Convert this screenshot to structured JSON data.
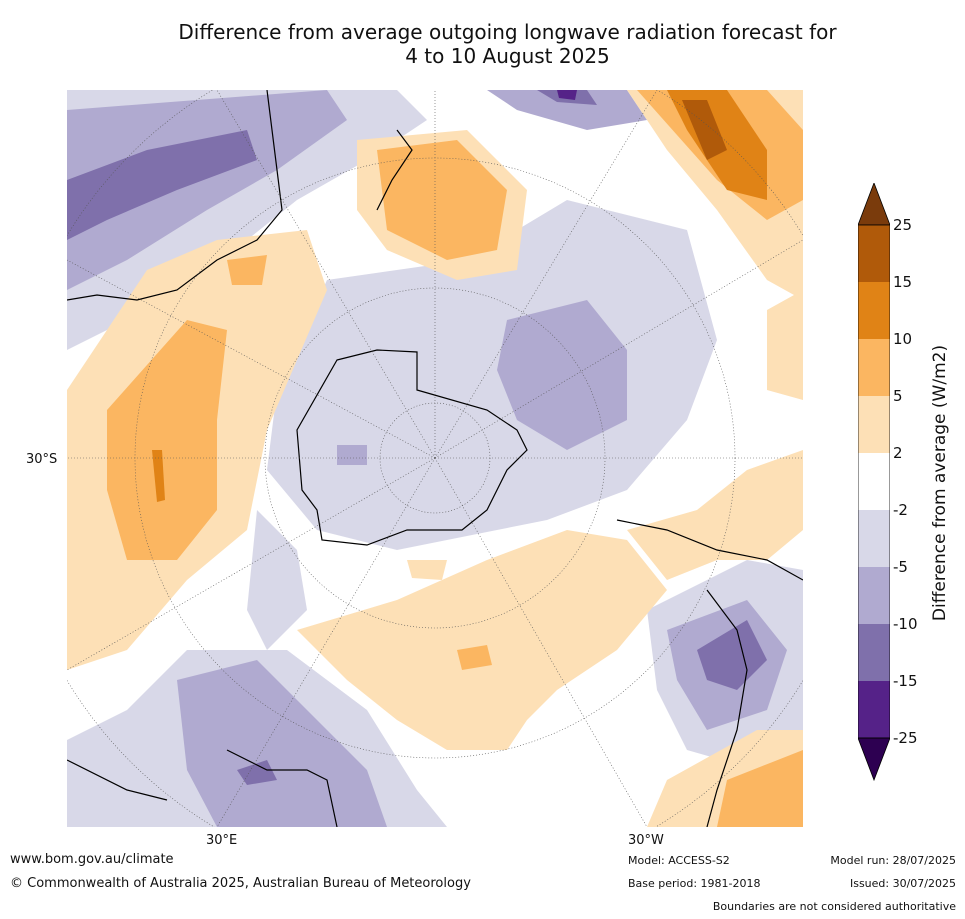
{
  "title": {
    "line1": "Difference from average outgoing longwave radiation forecast for",
    "line2": "4 to 10 August 2025"
  },
  "map": {
    "latitude_label": "30°S",
    "longitude_labels": [
      "30°E",
      "30°W"
    ]
  },
  "legend": {
    "label": "Difference from average (W/m2)",
    "ticks": [
      "25",
      "15",
      "10",
      "5",
      "2",
      "-2",
      "-5",
      "-10",
      "-15",
      "-25"
    ],
    "colors": {
      "gt25": "#7a3b0c",
      "15_25": "#b05a0a",
      "10_15": "#e08316",
      "5_10": "#fbb661",
      "2_5": "#fde0b6",
      "m2_2": "#ffffff",
      "m5_m2": "#d8d8e8",
      "m10_m5": "#b0aad0",
      "m15_m10": "#7f70ab",
      "m25_m15": "#552288",
      "lt_m25": "#2d0051"
    }
  },
  "footer": {
    "website": "www.bom.gov.au/climate",
    "copyright": "© Commonwealth of Australia 2025, Australian Bureau of Meteorology",
    "model": "Model: ACCESS-S2",
    "base_period": "Base period: 1981-2018",
    "model_run": "Model run: 28/07/2025",
    "issued": "Issued: 30/07/2025",
    "disclaimer": "Boundaries are not considered authoritative"
  }
}
